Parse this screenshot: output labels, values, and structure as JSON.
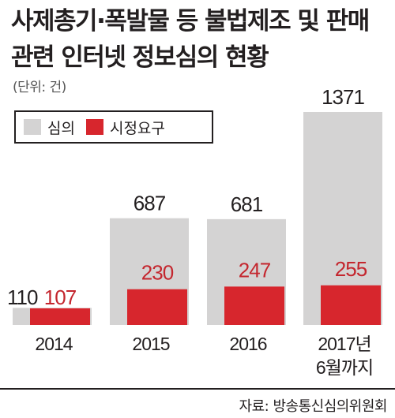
{
  "title": "사제총기·폭발물 등 불법제조 및 판매 관련 인터넷 정보심의 현황",
  "unit_note": "(단위: 건)",
  "source": "자료: 방송통신심의위원회",
  "colors": {
    "review": "#d4d3d3",
    "correction": "#d7262d",
    "text": "#231f20",
    "correction_label": "#c4262e"
  },
  "chart_data": {
    "type": "bar",
    "categories": [
      "2014",
      "2015",
      "2016",
      "2017년\n6월까지"
    ],
    "series": [
      {
        "name": "심의",
        "values": [
          110,
          687,
          681,
          1371
        ]
      },
      {
        "name": "시정요구",
        "values": [
          107,
          230,
          247,
          255
        ]
      }
    ],
    "legend": "top-left",
    "grid": false
  }
}
